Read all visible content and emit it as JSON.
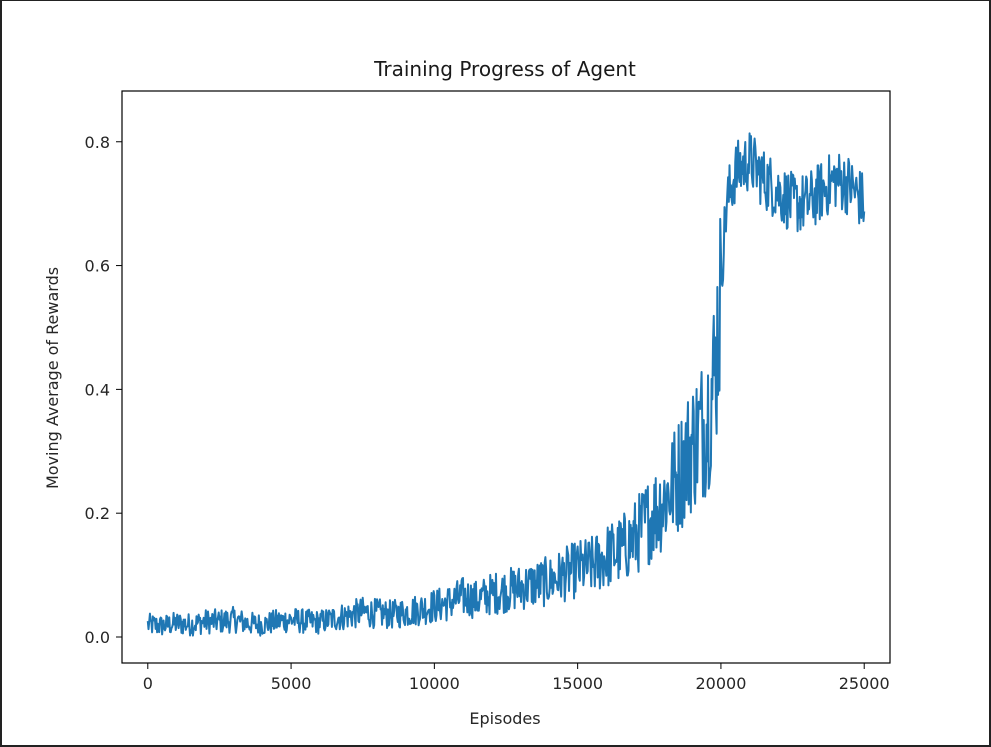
{
  "chart_data": {
    "type": "line",
    "title": "Training Progress of Agent",
    "xlabel": "Episodes",
    "ylabel": "Moving Average of Rewards",
    "xlim": [
      -900,
      25900
    ],
    "ylim": [
      -0.042,
      0.882
    ],
    "grid": false,
    "x_ticks": [
      0,
      5000,
      10000,
      15000,
      20000,
      25000
    ],
    "x_tick_labels": [
      "0",
      "5000",
      "10000",
      "15000",
      "20000",
      "25000"
    ],
    "y_ticks": [
      0.0,
      0.2,
      0.4,
      0.6,
      0.8
    ],
    "y_tick_labels": [
      "0.0",
      "0.2",
      "0.4",
      "0.6",
      "0.8"
    ],
    "series": [
      {
        "color": "#1f77b4",
        "x": [
          0,
          500,
          1000,
          1500,
          2000,
          2500,
          3000,
          3500,
          4000,
          4500,
          5000,
          5500,
          6000,
          6500,
          7000,
          7500,
          8000,
          8500,
          9000,
          9500,
          10000,
          10500,
          11000,
          11500,
          12000,
          12500,
          13000,
          13500,
          14000,
          14500,
          15000,
          15500,
          16000,
          16500,
          17000,
          17500,
          18000,
          18500,
          19000,
          19500,
          19800,
          20000,
          20200,
          20500,
          21000,
          21500,
          22000,
          22500,
          23000,
          23500,
          24000,
          24500,
          25000
        ],
        "y": [
          0.02,
          0.018,
          0.022,
          0.02,
          0.025,
          0.025,
          0.028,
          0.022,
          0.02,
          0.025,
          0.028,
          0.025,
          0.024,
          0.03,
          0.035,
          0.04,
          0.038,
          0.036,
          0.04,
          0.045,
          0.05,
          0.055,
          0.065,
          0.06,
          0.07,
          0.075,
          0.08,
          0.085,
          0.09,
          0.1,
          0.11,
          0.115,
          0.13,
          0.14,
          0.16,
          0.19,
          0.22,
          0.26,
          0.31,
          0.35,
          0.43,
          0.58,
          0.7,
          0.75,
          0.77,
          0.74,
          0.72,
          0.7,
          0.7,
          0.72,
          0.74,
          0.73,
          0.7
        ]
      }
    ]
  }
}
